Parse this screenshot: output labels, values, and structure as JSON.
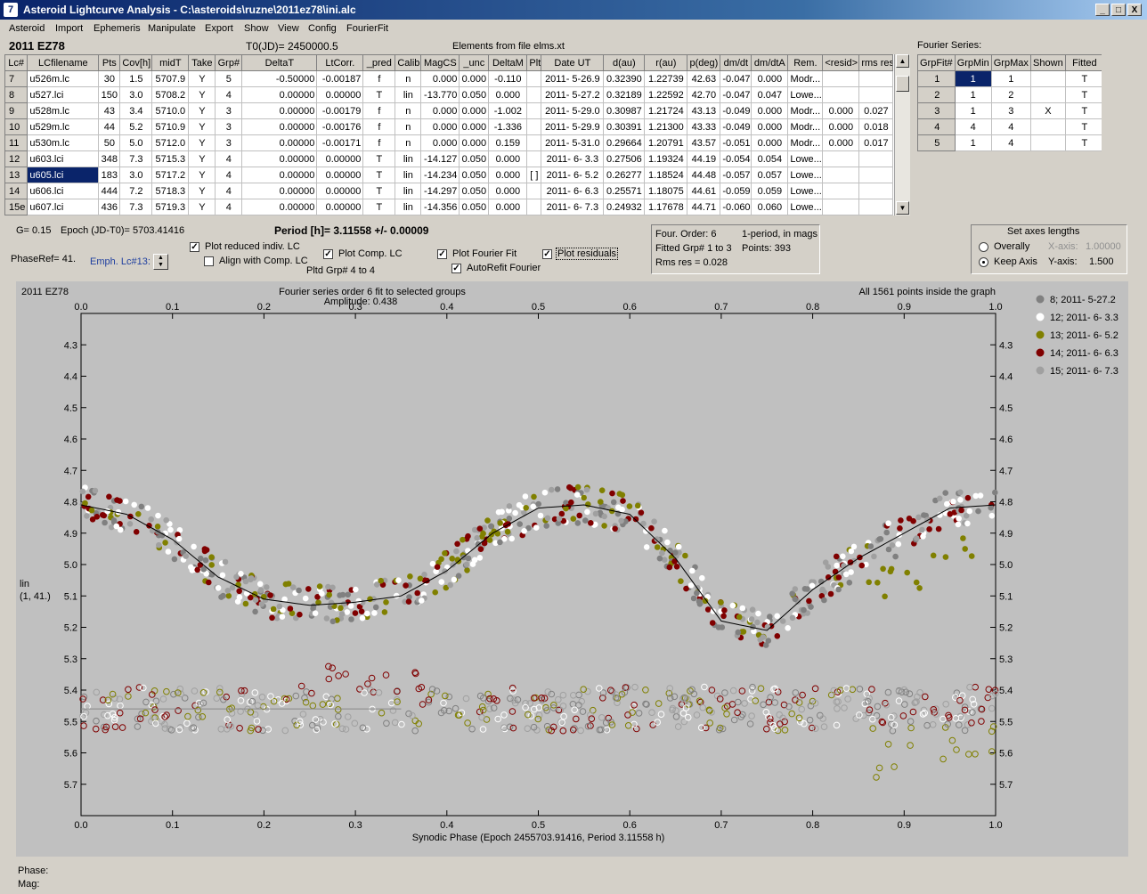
{
  "window": {
    "title": "Asteroid Lightcurve Analysis - C:\\asteroids\\ruzne\\2011ez78\\ini.alc",
    "min": "_",
    "max": "□",
    "close": "X"
  },
  "menu": [
    "Asteroid",
    "Import",
    "Ephemeris",
    "Manipulate",
    "Export",
    "Show",
    "View",
    "Config",
    "FourierFit"
  ],
  "header": {
    "asteroid": "2011 EZ78",
    "t0": "T0(JD)= 2450000.5",
    "elements": "Elements from file elms.xt",
    "fourier_label": "Fourier Series:"
  },
  "lc_table": {
    "columns": [
      "Lc#",
      "LCfilename",
      "Pts",
      "Cov[h]",
      "midT",
      "Take",
      "Grp#",
      "DeltaT",
      "LtCorr.",
      "_pred",
      "Calib",
      "MagCS",
      "_unc",
      "DeltaM",
      "Plt",
      "Date UT",
      "d(au)",
      "r(au)",
      "p(deg)",
      "dm/dt",
      "dm/dtA",
      "Rem.",
      "<resid>",
      "rms res"
    ],
    "rows": [
      [
        "7",
        "u526m.lc",
        "30",
        "1.5",
        "5707.9",
        "Y",
        "5",
        "-0.50000",
        "-0.00187",
        "f",
        "n",
        "0.000",
        "0.000",
        "-0.110",
        "",
        "2011- 5-26.9",
        "0.32390",
        "1.22739",
        "42.63",
        "-0.047",
        "0.000",
        "Modr...",
        "",
        ""
      ],
      [
        "8",
        "u527.lci",
        "150",
        "3.0",
        "5708.2",
        "Y",
        "4",
        "0.00000",
        "0.00000",
        "T",
        "lin",
        "-13.770",
        "0.050",
        "0.000",
        "",
        "2011- 5-27.2",
        "0.32189",
        "1.22592",
        "42.70",
        "-0.047",
        "0.047",
        "Lowe...",
        "",
        ""
      ],
      [
        "9",
        "u528m.lc",
        "43",
        "3.4",
        "5710.0",
        "Y",
        "3",
        "0.00000",
        "-0.00179",
        "f",
        "n",
        "0.000",
        "0.000",
        "-1.002",
        "",
        "2011- 5-29.0",
        "0.30987",
        "1.21724",
        "43.13",
        "-0.049",
        "0.000",
        "Modr...",
        "0.000",
        "0.027"
      ],
      [
        "10",
        "u529m.lc",
        "44",
        "5.2",
        "5710.9",
        "Y",
        "3",
        "0.00000",
        "-0.00176",
        "f",
        "n",
        "0.000",
        "0.000",
        "-1.336",
        "",
        "2011- 5-29.9",
        "0.30391",
        "1.21300",
        "43.33",
        "-0.049",
        "0.000",
        "Modr...",
        "0.000",
        "0.018"
      ],
      [
        "11",
        "u530m.lc",
        "50",
        "5.0",
        "5712.0",
        "Y",
        "3",
        "0.00000",
        "-0.00171",
        "f",
        "n",
        "0.000",
        "0.000",
        "0.159",
        "",
        "2011- 5-31.0",
        "0.29664",
        "1.20791",
        "43.57",
        "-0.051",
        "0.000",
        "Modr...",
        "0.000",
        "0.017"
      ],
      [
        "12",
        "u603.lci",
        "348",
        "7.3",
        "5715.3",
        "Y",
        "4",
        "0.00000",
        "0.00000",
        "T",
        "lin",
        "-14.127",
        "0.050",
        "0.000",
        "",
        "2011- 6- 3.3",
        "0.27506",
        "1.19324",
        "44.19",
        "-0.054",
        "0.054",
        "Lowe...",
        "",
        ""
      ],
      [
        "13",
        "u605.lci",
        "183",
        "3.0",
        "5717.2",
        "Y",
        "4",
        "0.00000",
        "0.00000",
        "T",
        "lin",
        "-14.234",
        "0.050",
        "0.000",
        "[ ]",
        "2011- 6- 5.2",
        "0.26277",
        "1.18524",
        "44.48",
        "-0.057",
        "0.057",
        "Lowe...",
        "",
        ""
      ],
      [
        "14",
        "u606.lci",
        "444",
        "7.2",
        "5718.3",
        "Y",
        "4",
        "0.00000",
        "0.00000",
        "T",
        "lin",
        "-14.297",
        "0.050",
        "0.000",
        "",
        "2011- 6- 6.3",
        "0.25571",
        "1.18075",
        "44.61",
        "-0.059",
        "0.059",
        "Lowe...",
        "",
        ""
      ],
      [
        "15e",
        "u607.lci",
        "436",
        "7.3",
        "5719.3",
        "Y",
        "4",
        "0.00000",
        "0.00000",
        "T",
        "lin",
        "-14.356",
        "0.050",
        "0.000",
        "",
        "2011- 6- 7.3",
        "0.24932",
        "1.17678",
        "44.71",
        "-0.060",
        "0.060",
        "Lowe...",
        "",
        ""
      ]
    ]
  },
  "fourier_table": {
    "columns": [
      "GrpFit#",
      "GrpMin",
      "GrpMax",
      "Shown",
      "Fitted"
    ],
    "rows": [
      [
        "1",
        "1",
        "1",
        "",
        "T"
      ],
      [
        "2",
        "1",
        "2",
        "",
        "T"
      ],
      [
        "3",
        "1",
        "3",
        "X",
        "T"
      ],
      [
        "4",
        "4",
        "4",
        "",
        "T"
      ],
      [
        "5",
        "1",
        "4",
        "",
        "T"
      ]
    ]
  },
  "info": {
    "g": "G= 0.15",
    "epoch": "Epoch (JD-T0)= 5703.41416",
    "period": "Period [h]= 3.11558 +/- 0.00009",
    "phaseref": "PhaseRef= 41.",
    "emph": "Emph. Lc#13:",
    "pltd_grp": "Pltd Grp#  4  to   4"
  },
  "checks": {
    "reduced": {
      "label": "Plot reduced indiv. LC",
      "checked": "✓"
    },
    "align": {
      "label": "Align with Comp. LC",
      "checked": ""
    },
    "comp": {
      "label": "Plot Comp. LC",
      "checked": "✓"
    },
    "fourier": {
      "label": "Plot Fourier Fit",
      "checked": "✓"
    },
    "autorefit": {
      "label": "AutoRefit Fourier",
      "checked": "✓"
    },
    "residuals": {
      "label": "Plot residuals",
      "checked": "✓"
    }
  },
  "fitinfo": {
    "order": "Four. Order:  6",
    "mode": "1-period, in mags",
    "fitted": "Fitted Grp# 1 to 3",
    "points": "Points: 393",
    "rms": "Rms res     = 0.028"
  },
  "axes_panel": {
    "title": "Set axes lengths",
    "overally": "Overally",
    "keep": "Keep Axis",
    "xaxis_label": "X-axis:",
    "xaxis_val": "1.00000",
    "yaxis_label": "Y-axis:",
    "yaxis_val": "1.500"
  },
  "plot": {
    "name": "2011 EZ78",
    "subtitle1": "Fourier series order 6 fit to selected groups",
    "subtitle2": "Amplitude: 0.438",
    "inside": "All 1561 points inside the graph",
    "ylabel1": "lin",
    "ylabel2": "(1, 41.)"
  },
  "status": {
    "phase": "Phase:",
    "mag": "Mag:"
  },
  "chart_data": {
    "type": "scatter",
    "xlabel": "Synodic Phase (Epoch 2455703.91416, Period 3.11558 h)",
    "xlim": [
      0,
      1
    ],
    "ylim": [
      4.2,
      5.8
    ],
    "y_inverted": true,
    "xticks": [
      "0.0",
      "0.1",
      "0.2",
      "0.3",
      "0.4",
      "0.5",
      "0.6",
      "0.7",
      "0.8",
      "0.9",
      "1.0"
    ],
    "yticks": [
      "4.3",
      "4.4",
      "4.5",
      "4.6",
      "4.7",
      "4.8",
      "4.9",
      "5.0",
      "5.1",
      "5.2",
      "5.3",
      "5.4",
      "5.5",
      "5.6",
      "5.7"
    ],
    "legend_position": "top-right",
    "legend": [
      {
        "label": "8; 2011- 5-27.2",
        "color": "#808080"
      },
      {
        "label": "12; 2011- 6- 3.3",
        "color": "#ffffff"
      },
      {
        "label": "13; 2011- 6- 5.2",
        "color": "#808000"
      },
      {
        "label": "14; 2011- 6- 6.3",
        "color": "#800000"
      },
      {
        "label": "15; 2011- 6- 7.3",
        "color": "#a0a0a0"
      }
    ],
    "fourier_fit": {
      "x": [
        0.0,
        0.05,
        0.1,
        0.15,
        0.2,
        0.25,
        0.3,
        0.35,
        0.4,
        0.45,
        0.5,
        0.55,
        0.6,
        0.65,
        0.7,
        0.75,
        0.8,
        0.85,
        0.9,
        0.95,
        1.0
      ],
      "y": [
        4.81,
        4.84,
        4.92,
        5.04,
        5.11,
        5.13,
        5.12,
        5.1,
        5.02,
        4.9,
        4.82,
        4.81,
        4.84,
        4.98,
        5.18,
        5.21,
        5.08,
        4.98,
        4.9,
        4.82,
        4.81
      ]
    },
    "residual_level": 5.46
  }
}
